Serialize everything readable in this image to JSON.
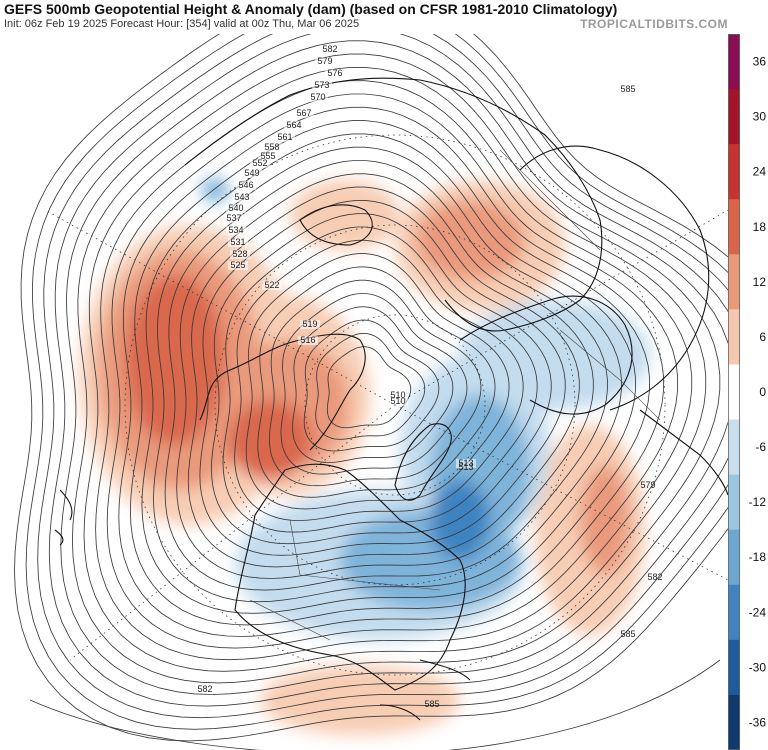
{
  "header": {
    "title": "GEFS 500mb Geopotential Height & Anomaly (dam) (based on CFSR 1981-2010 Climatology)",
    "subtitle": "Init: 06z Feb 19 2025   Forecast Hour: [354]   valid at 00z Thu, Mar 06 2025",
    "brand": "TROPICALTIDBITS.COM"
  },
  "colorbar": {
    "labels": [
      "36",
      "30",
      "24",
      "18",
      "12",
      "6",
      "0",
      "-6",
      "-12",
      "-18",
      "-24",
      "-30",
      "-36"
    ],
    "colors": [
      "#8a0f52",
      "#a3142a",
      "#c43530",
      "#d8654a",
      "#e89a78",
      "#f5c7ae",
      "#ffffff",
      "#c9dfee",
      "#9cc5e0",
      "#6ca7d1",
      "#3f84bd",
      "#1f5b9a",
      "#103a6e"
    ]
  },
  "map": {
    "contour_labels": [
      "582",
      "579",
      "576",
      "573",
      "570",
      "567",
      "564",
      "561",
      "558",
      "555",
      "552",
      "549",
      "546",
      "543",
      "540",
      "537",
      "534",
      "531",
      "528",
      "525",
      "522",
      "519",
      "516",
      "513",
      "510",
      "585"
    ],
    "anomaly_colors": {
      "positive_strong": "#d9684e",
      "positive_mid": "#ea9a7c",
      "positive_light": "#f7cdb4",
      "negative_light": "#c3dcee",
      "negative_mid": "#7eb3da",
      "negative_strong": "#3c83c1"
    }
  }
}
